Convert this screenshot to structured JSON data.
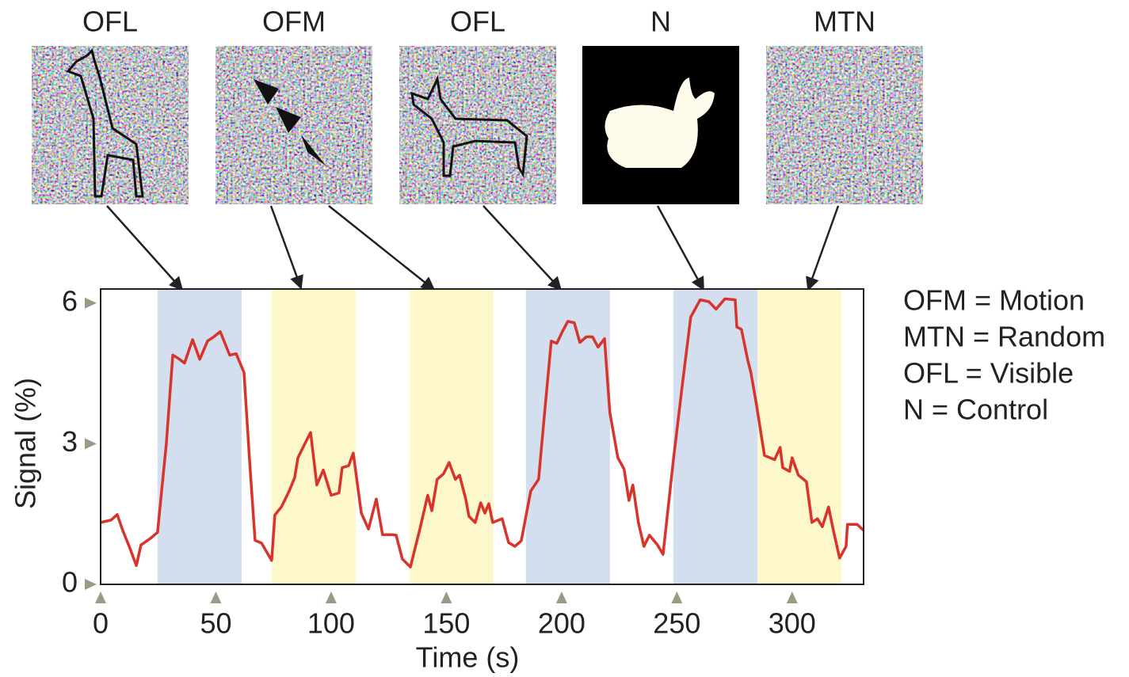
{
  "stimuli": [
    {
      "label": "OFL"
    },
    {
      "label": "OFM"
    },
    {
      "label": "OFL"
    },
    {
      "label": "N"
    },
    {
      "label": "MTN"
    }
  ],
  "key": [
    "OFM = Motion",
    "MTN = Random",
    "OFL = Visible",
    "N = Control"
  ],
  "chart_data": {
    "type": "line",
    "xlabel": "Time (s)",
    "ylabel": "Signal (%)",
    "xlim": [
      0,
      331
    ],
    "ylim": [
      0,
      6.3
    ],
    "xticks": [
      0,
      50,
      100,
      150,
      200,
      250,
      300
    ],
    "yticks": [
      0,
      3,
      6
    ],
    "regions": [
      {
        "start": 24.7,
        "end": 61.2,
        "color": "#d3deef"
      },
      {
        "start": 74.2,
        "end": 110.7,
        "color": "#fdf7cc"
      },
      {
        "start": 134,
        "end": 170.4,
        "color": "#fdf7cc"
      },
      {
        "start": 184.5,
        "end": 221,
        "color": "#d3deef"
      },
      {
        "start": 248.5,
        "end": 285,
        "color": "#d3deef"
      },
      {
        "start": 285,
        "end": 321.3,
        "color": "#fdf7cc"
      }
    ],
    "x": [
      0,
      4.5,
      7.2,
      9.6,
      12.4,
      15.5,
      17.5,
      21.6,
      24.7,
      28.5,
      31.3,
      33.7,
      36.4,
      39.9,
      43,
      46.4,
      49.1,
      51.9,
      56,
      58.8,
      62.2,
      64.6,
      67,
      69.8,
      74.2,
      75.6,
      78.4,
      81.8,
      84.2,
      85.6,
      88.3,
      91.1,
      93.8,
      96.6,
      100,
      103.4,
      104.8,
      107.6,
      109.6,
      113.1,
      116.2,
      119.6,
      122.3,
      126.5,
      128.2,
      130.9,
      134.4,
      138.5,
      141.9,
      143.7,
      146,
      148.8,
      151.2,
      153.9,
      155.7,
      158.4,
      159.8,
      162.5,
      164.9,
      166.7,
      168.4,
      170.1,
      174.2,
      177,
      179.7,
      182.5,
      186.6,
      190,
      192.8,
      195.5,
      197.9,
      200.3,
      202.7,
      205.5,
      207.9,
      210.7,
      213.4,
      215.8,
      218.6,
      220.9,
      224.4,
      227.1,
      229.2,
      230.9,
      233.3,
      235.7,
      238.1,
      241.6,
      244,
      248.5,
      252.6,
      256,
      260.1,
      263.9,
      267,
      270.8,
      275.3,
      276,
      278,
      280.8,
      282.1,
      284.5,
      288,
      292.4,
      294.8,
      295.9,
      298.9,
      300,
      302.7,
      306.2,
      308.6,
      311,
      313.1,
      315.8,
      317.9,
      320.6,
      323.4,
      324,
      328.2,
      331
    ],
    "series": [
      {
        "color": "#d9342b",
        "values": [
          1.32,
          1.37,
          1.49,
          1.15,
          0.81,
          0.4,
          0.84,
          0.98,
          1.11,
          3.0,
          4.89,
          4.82,
          4.72,
          5.22,
          4.8,
          5.19,
          5.28,
          5.39,
          4.89,
          4.92,
          4.52,
          2.66,
          0.94,
          0.88,
          0.51,
          1.48,
          1.65,
          1.99,
          2.28,
          2.7,
          2.97,
          3.24,
          2.12,
          2.44,
          1.9,
          1.95,
          2.49,
          2.53,
          2.8,
          1.52,
          1.18,
          1.82,
          1.06,
          1.06,
          1.05,
          0.54,
          0.37,
          1.18,
          1.9,
          1.57,
          2.24,
          2.36,
          2.6,
          2.24,
          2.33,
          1.82,
          1.45,
          1.32,
          1.74,
          1.52,
          1.72,
          1.32,
          1.4,
          0.89,
          0.81,
          0.93,
          1.99,
          2.24,
          3.76,
          5.19,
          5.14,
          5.39,
          5.61,
          5.58,
          5.16,
          5.28,
          5.28,
          5.06,
          5.24,
          3.67,
          2.7,
          2.46,
          1.79,
          2.12,
          1.32,
          0.81,
          1.05,
          0.84,
          0.64,
          2.66,
          4.35,
          5.7,
          6.07,
          6.03,
          5.87,
          6.09,
          6.07,
          5.49,
          5.44,
          4.77,
          4.52,
          3.84,
          2.75,
          2.66,
          2.92,
          2.49,
          2.41,
          2.7,
          2.33,
          2.19,
          1.32,
          1.4,
          1.23,
          1.65,
          1.15,
          0.56,
          0.81,
          1.28,
          1.28,
          1.15
        ]
      }
    ]
  }
}
